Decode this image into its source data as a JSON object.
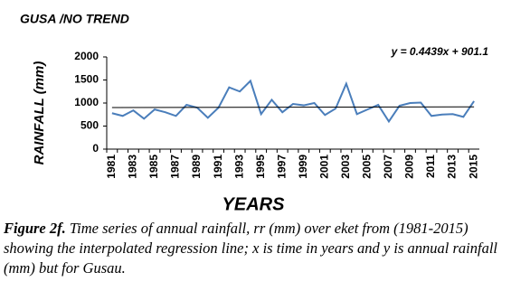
{
  "chart_data": {
    "type": "line",
    "title": "GUSA /NO TREND",
    "x_label": "YEARS",
    "y_label": "RAINFALL (mm)",
    "categories": [
      "1981",
      null,
      "1983",
      null,
      "1985",
      null,
      "1987",
      null,
      "1989",
      null,
      "1991",
      null,
      "1993",
      null,
      "1995",
      null,
      "1997",
      null,
      "1999",
      null,
      "2001",
      null,
      "2003",
      null,
      "2005",
      null,
      "2007",
      null,
      "2009",
      null,
      "2011",
      null,
      "2013",
      null,
      "2015"
    ],
    "series": [
      {
        "name": "Annual rainfall",
        "color": "#4a7ebb",
        "values": [
          780,
          720,
          840,
          660,
          860,
          800,
          720,
          960,
          900,
          680,
          900,
          1340,
          1250,
          1480,
          760,
          1070,
          800,
          980,
          950,
          1000,
          740,
          880,
          1420,
          760,
          860,
          960,
          600,
          940,
          1000,
          1010,
          720,
          750,
          760,
          700,
          1040
        ]
      }
    ],
    "trendline": {
      "label": "y = 0.4439x + 901.1",
      "slope": 0.4439,
      "intercept": 901.1,
      "color": "#000000"
    },
    "ylim": [
      0,
      2000
    ],
    "yticks": [
      0,
      500,
      1000,
      1500,
      2000
    ],
    "grid": false,
    "caption": {
      "label": "Figure 2f.",
      "text": "Time series of annual rainfall, rr (mm) over eket from (1981-2015) showing the interpolated regression line; x is time in years and y is annual rainfall (mm) but for Gusau."
    }
  }
}
